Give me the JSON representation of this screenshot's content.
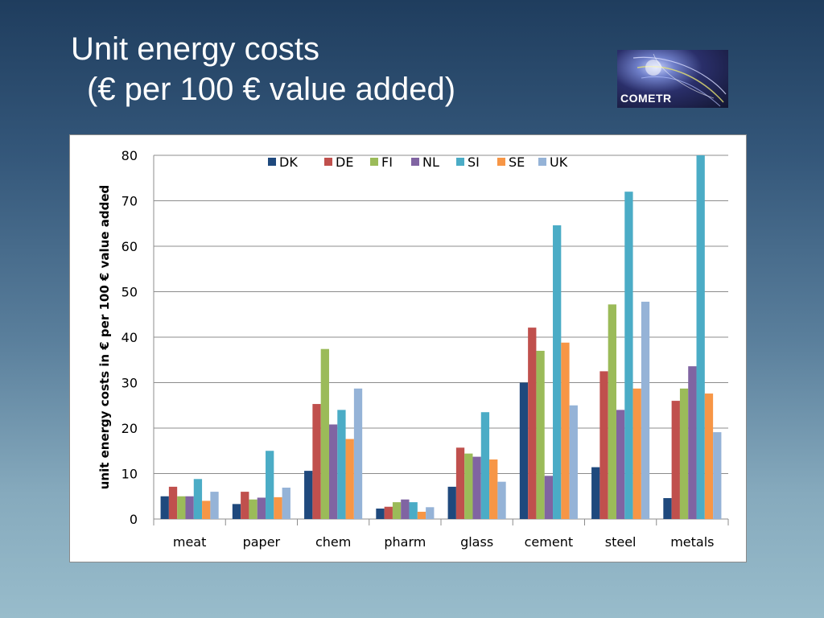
{
  "slide": {
    "title_line1": "Unit energy costs",
    "title_line2": "(€ per 100 € value added)"
  },
  "logo": {
    "text": "COMETR"
  },
  "chart_data": {
    "type": "bar",
    "title": "",
    "xlabel": "",
    "ylabel": "unit energy costs in € per 100 € value added",
    "ylim": [
      0,
      80
    ],
    "yticks": [
      0,
      10,
      20,
      30,
      40,
      50,
      60,
      70,
      80
    ],
    "grid": true,
    "legend_position": "top",
    "categories": [
      "meat",
      "paper",
      "chem",
      "pharm",
      "glass",
      "cement",
      "steel",
      "metals"
    ],
    "series": [
      {
        "name": "DK",
        "color": "#1f497d",
        "values": [
          5.0,
          3.3,
          10.6,
          2.3,
          7.1,
          30.0,
          11.4,
          4.6
        ]
      },
      {
        "name": "DE",
        "color": "#c0504d",
        "values": [
          7.1,
          6.0,
          25.3,
          2.7,
          15.7,
          42.1,
          32.5,
          26.0
        ]
      },
      {
        "name": "FI",
        "color": "#9bbb59",
        "values": [
          5.0,
          4.3,
          37.4,
          3.7,
          14.4,
          37.0,
          47.2,
          28.7
        ]
      },
      {
        "name": "NL",
        "color": "#8064a2",
        "values": [
          5.0,
          4.7,
          20.8,
          4.3,
          13.7,
          9.5,
          24.0,
          33.6
        ]
      },
      {
        "name": "SI",
        "color": "#4bacc6",
        "values": [
          8.8,
          15.0,
          24.0,
          3.7,
          23.5,
          64.6,
          72.0,
          80.0
        ]
      },
      {
        "name": "SE",
        "color": "#f79646",
        "values": [
          4.0,
          4.8,
          17.6,
          1.6,
          13.1,
          38.8,
          28.7,
          27.6
        ]
      },
      {
        "name": "UK",
        "color": "#95b3d7",
        "values": [
          6.0,
          6.9,
          28.7,
          2.6,
          8.2,
          25.0,
          47.8,
          19.1
        ]
      }
    ]
  }
}
